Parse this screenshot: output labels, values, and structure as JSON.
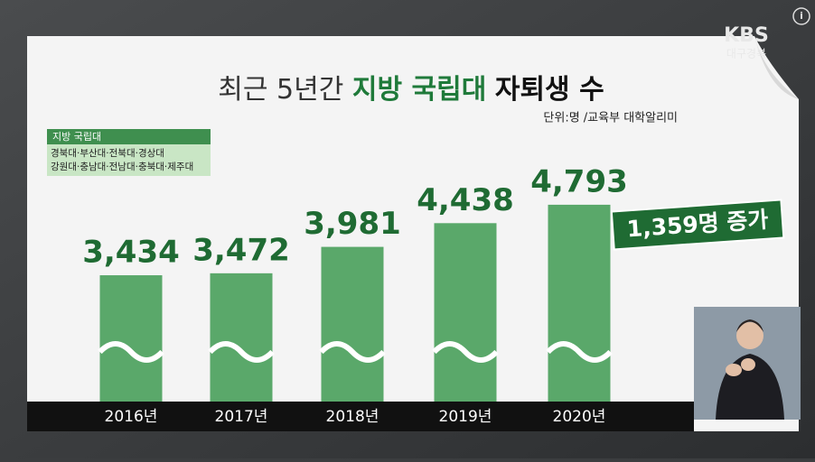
{
  "chart_data": {
    "type": "bar",
    "title": "최근 5년간",
    "title_highlight": "지방 국립대",
    "title_end": "자퇴생 수",
    "unit_note": "단위:명 /교육부 대학알리미",
    "legend_title": "지방 국립대",
    "legend_lines": [
      "경북대·부산대·전북대·경상대",
      "강원대·충남대·전남대·충북대·제주대"
    ],
    "categories": [
      "2016년",
      "2017년",
      "2018년",
      "2019년",
      "2020년"
    ],
    "values": [
      3434,
      3472,
      3981,
      4438,
      4793
    ],
    "value_labels": [
      "3,434",
      "3,472",
      "3,981",
      "4,438",
      "4,793"
    ],
    "annotation": "1,359명 증가",
    "color": "#5aa86a",
    "ylim": [
      1000,
      5000
    ]
  },
  "broadcaster": {
    "logo": "KBS",
    "region": "대구경북",
    "info_icon": "i"
  }
}
